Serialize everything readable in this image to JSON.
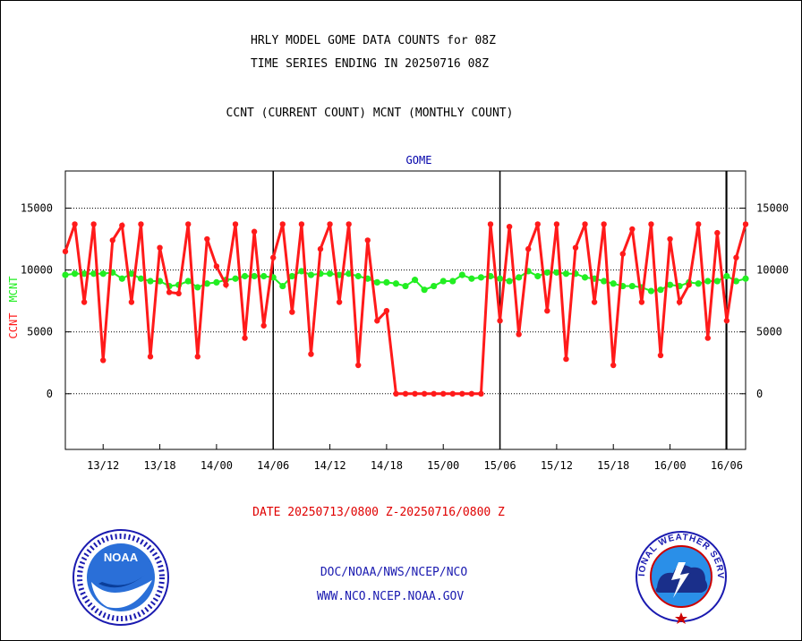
{
  "header": {
    "title_line1": "HRLY MODEL GOME DATA COUNTS for 08Z",
    "title_line2": "TIME SERIES ENDING IN 20250716 08Z",
    "subtitle": "CCNT (CURRENT COUNT) MCNT (MONTHLY COUNT)"
  },
  "footer": {
    "date_range": "DATE 20250713/0800 Z-20250716/0800 Z",
    "org_path": "DOC/NOAA/NWS/NCEP/NCO",
    "website": "WWW.NCO.NCEP.NOAA.GOV"
  },
  "logos": {
    "left": {
      "badge": "NOAA"
    },
    "right": {
      "name": "NATIONAL WEATHER SERVICE"
    }
  },
  "colors": {
    "ccnt": "#ff1a1a",
    "mcnt": "#22ee22",
    "title_text": "#000000",
    "plot_label": "#0000aa",
    "date_text": "#e00000",
    "footer_link": "#1a1ab0"
  },
  "chart_data": {
    "type": "line",
    "plot_label": "GOME",
    "ylabel_ccnt": "CCNT",
    "ylabel_mcnt": "MCNT",
    "ylim": [
      -4500,
      18000
    ],
    "yticks": [
      0,
      5000,
      10000,
      15000
    ],
    "ytick_labels": [
      "0",
      "5000",
      "10000",
      "15000"
    ],
    "x_range_hours": [
      0,
      72
    ],
    "xticks": [
      {
        "hour": 4,
        "label": "13/12"
      },
      {
        "hour": 10,
        "label": "13/18"
      },
      {
        "hour": 16,
        "label": "14/00"
      },
      {
        "hour": 22,
        "label": "14/06"
      },
      {
        "hour": 28,
        "label": "14/12"
      },
      {
        "hour": 34,
        "label": "14/18"
      },
      {
        "hour": 40,
        "label": "15/00"
      },
      {
        "hour": 46,
        "label": "15/06"
      },
      {
        "hour": 52,
        "label": "15/12"
      },
      {
        "hour": 58,
        "label": "15/18"
      },
      {
        "hour": 64,
        "label": "16/00"
      },
      {
        "hour": 70,
        "label": "16/06"
      }
    ],
    "day_boundaries": [
      22,
      46,
      70
    ],
    "grid": "horizontal dotted",
    "series": [
      {
        "name": "CCNT",
        "values": [
          11500,
          13700,
          7400,
          13700,
          2700,
          12400,
          13600,
          7400,
          13700,
          3000,
          11800,
          8200,
          8100,
          13700,
          3000,
          12500,
          10300,
          8800,
          13700,
          4500,
          13100,
          5500,
          11000,
          13700,
          6600,
          13700,
          3200,
          11700,
          13700,
          7400,
          13700,
          2300,
          12400,
          5900,
          6700,
          0,
          0,
          0,
          0,
          0,
          0,
          0,
          0,
          0,
          0,
          13700,
          5900,
          13500,
          4800,
          11700,
          13700,
          6700,
          13700,
          2800,
          11800,
          13700,
          7400,
          13700,
          2300,
          11300,
          13300,
          7400,
          13700,
          3100,
          12500,
          7400,
          8800,
          13700,
          4500,
          13000,
          5900,
          11000,
          13700
        ]
      },
      {
        "name": "MCNT",
        "values": [
          9600,
          9700,
          9700,
          9700,
          9700,
          9800,
          9300,
          9700,
          9300,
          9100,
          9100,
          8700,
          8800,
          9100,
          8600,
          8900,
          9000,
          9200,
          9300,
          9500,
          9500,
          9500,
          9400,
          8700,
          9500,
          9900,
          9600,
          9700,
          9700,
          9600,
          9700,
          9500,
          9300,
          9000,
          9000,
          8900,
          8700,
          9200,
          8400,
          8700,
          9100,
          9100,
          9600,
          9300,
          9400,
          9500,
          9300,
          9100,
          9400,
          9900,
          9500,
          9800,
          9800,
          9700,
          9700,
          9400,
          9300,
          9100,
          8900,
          8700,
          8700,
          8600,
          8300,
          8400,
          8800,
          8700,
          9000,
          8900,
          9100,
          9100,
          9500,
          9100,
          9300
        ]
      }
    ]
  }
}
